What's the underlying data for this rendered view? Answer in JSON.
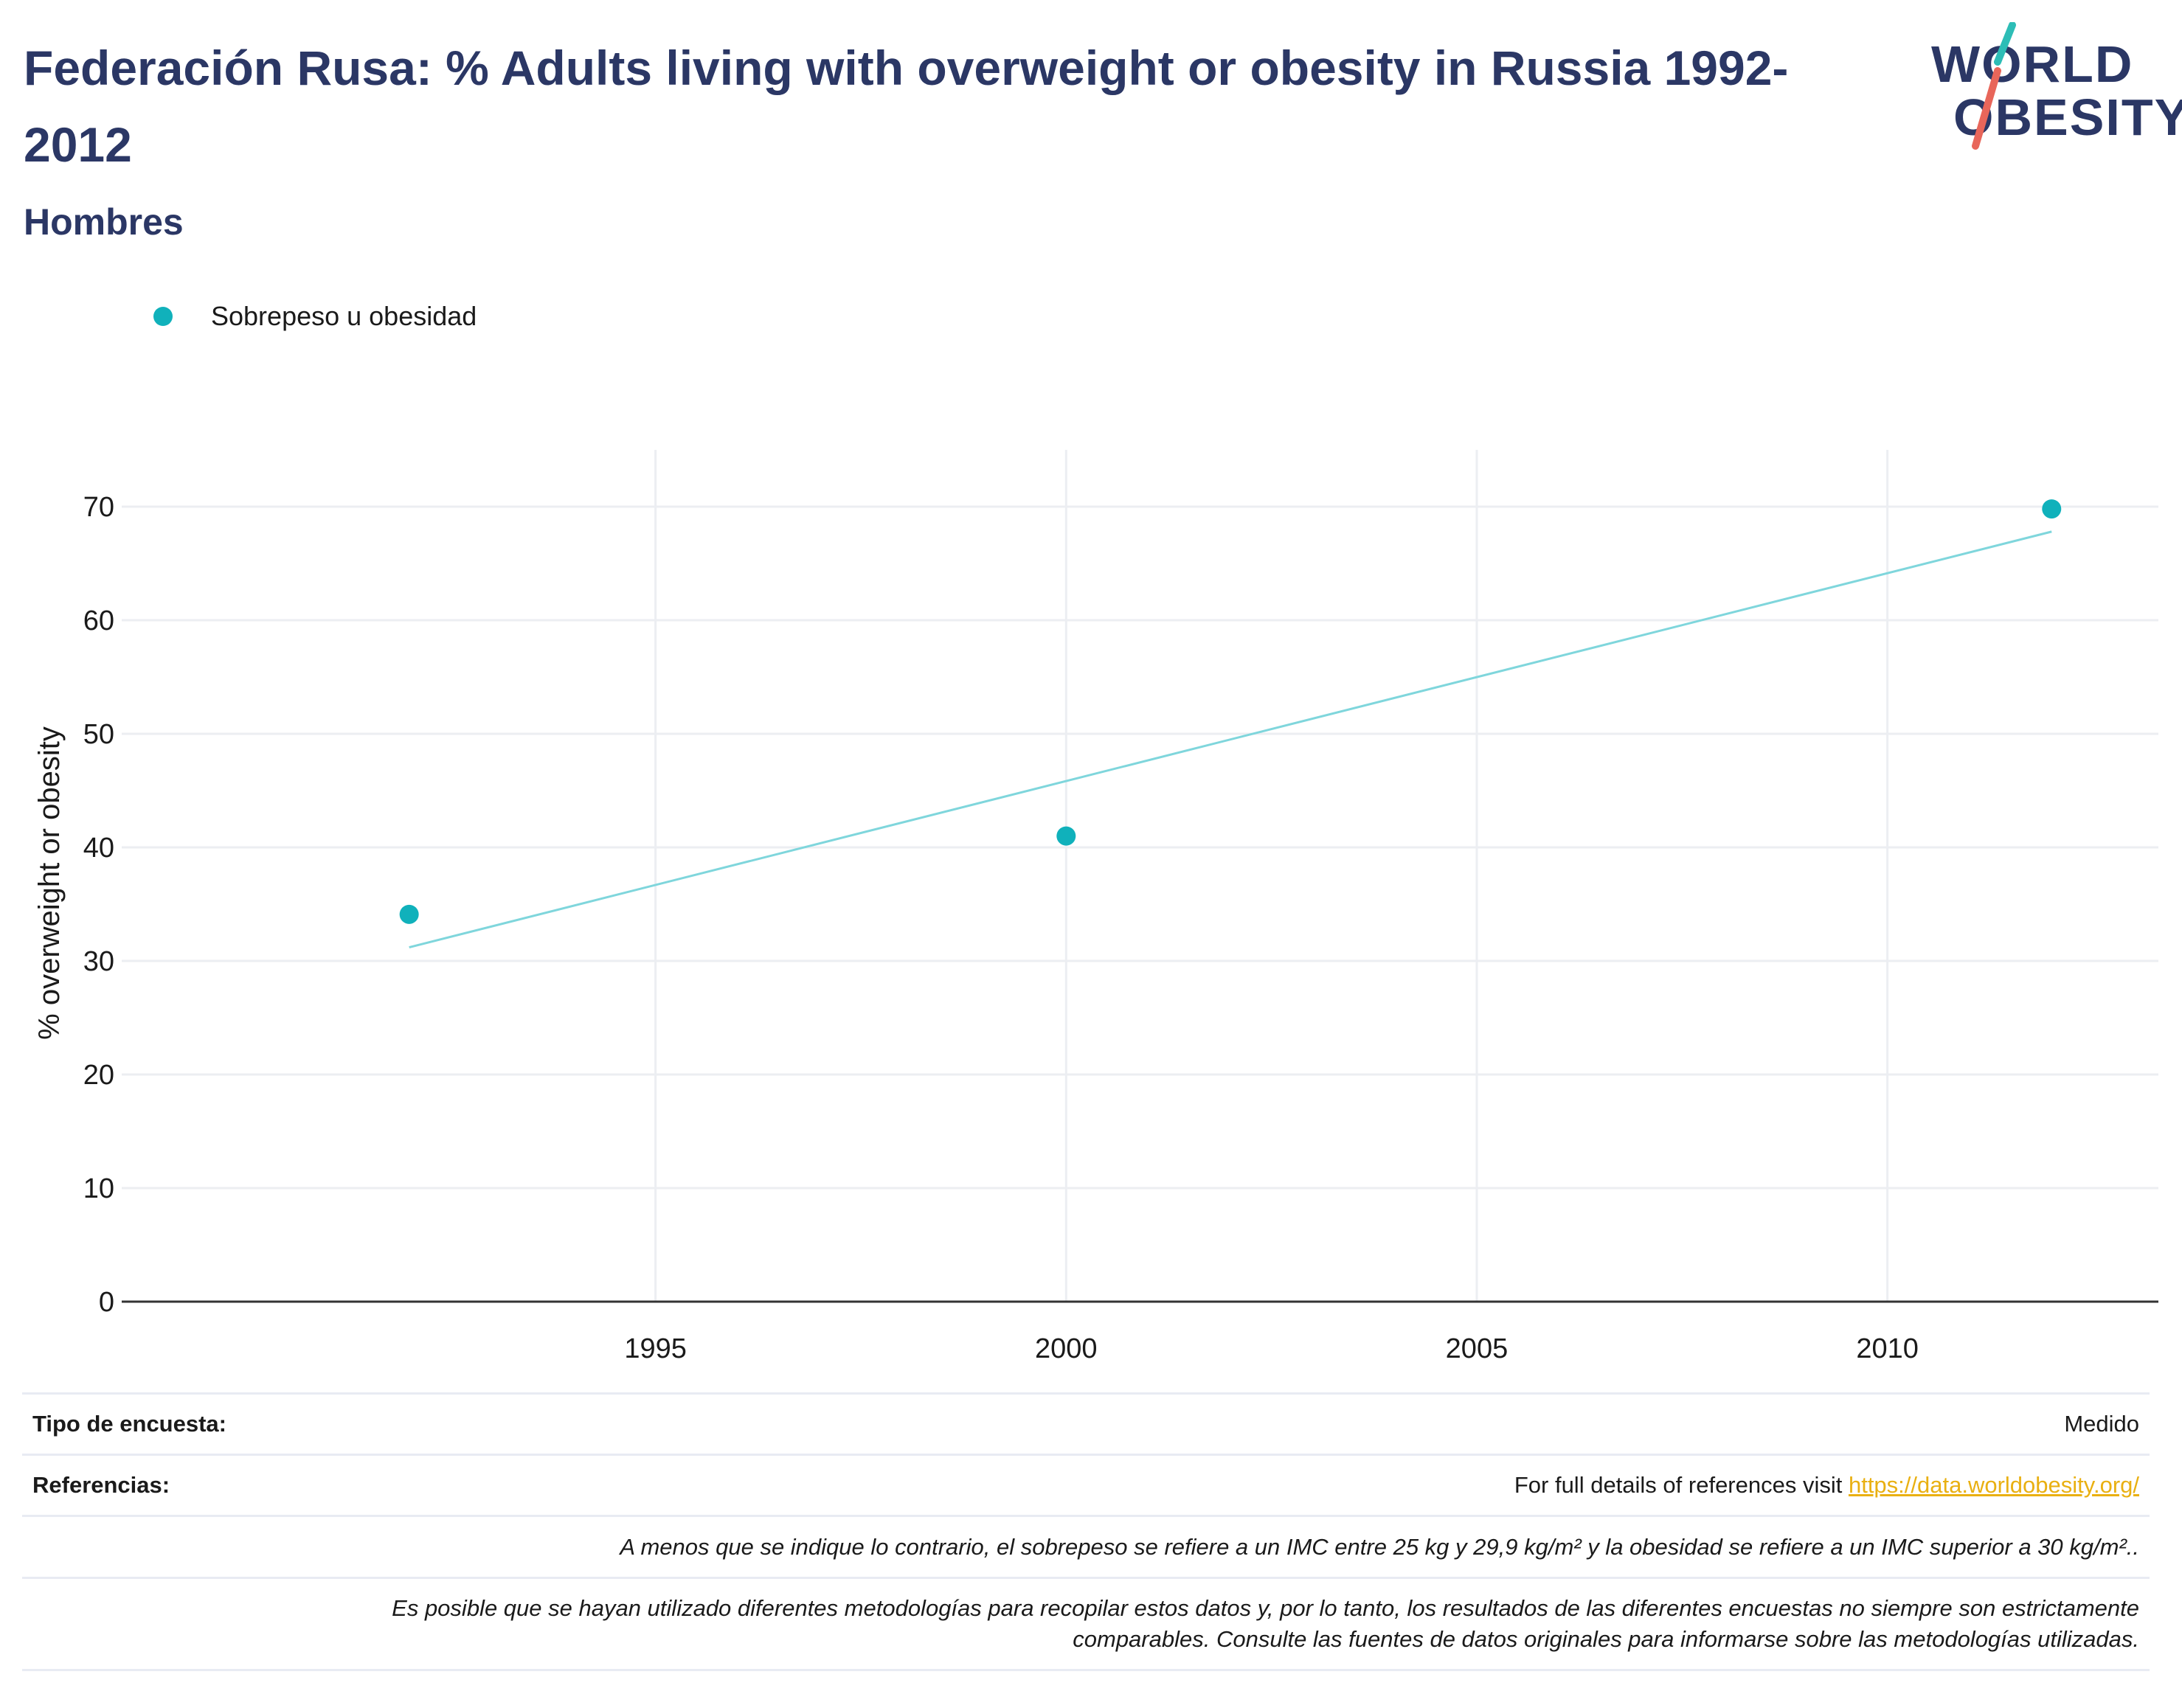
{
  "header": {
    "title": "Federación Rusa: % Adults living with overweight or obesity in Russia 1992-2012",
    "subtitle": "Hombres"
  },
  "logo": {
    "line1": "WORLD",
    "line2": "OBESITY"
  },
  "colors": {
    "accent": "#10b1bb",
    "trend": "#7fd6dc",
    "title": "#2b3765",
    "link": "#e9b012",
    "logo_slash_top": "#2dbdb6",
    "logo_slash_bottom": "#e8665a"
  },
  "chart_data": {
    "type": "scatter",
    "series": [
      {
        "name": "Sobrepeso u obesidad",
        "x": [
          1992,
          2000,
          2012
        ],
        "y": [
          34.1,
          41.0,
          69.8
        ]
      }
    ],
    "trendline": {
      "x": [
        1992,
        2012
      ],
      "y": [
        31.2,
        67.8
      ]
    },
    "xlabel": "",
    "ylabel": "% overweight or obesity",
    "xlim": [
      1988.5,
      2013.3
    ],
    "ylim": [
      0,
      75
    ],
    "x_ticks": [
      1995,
      2000,
      2005,
      2010
    ],
    "y_ticks": [
      0,
      10,
      20,
      30,
      40,
      50,
      60,
      70
    ],
    "grid": true,
    "legend": "top-left"
  },
  "footer": {
    "survey_label": "Tipo de encuesta:",
    "survey_value": "Medido",
    "refs_label": "Referencias:",
    "refs_text": "For full details of references visit ",
    "refs_link": "https://data.worldobesity.org/",
    "note1": "A menos que se indique lo contrario, el sobrepeso se refiere a un IMC entre 25 kg y 29,9 kg/m² y la obesidad se refiere a un IMC superior a 30 kg/m²..",
    "note2_line1": "Es posible que se hayan utilizado diferentes metodologías para recopilar estos datos y, por lo tanto, los resultados de las diferentes encuestas no siempre son estrictamente",
    "note2_line2": "comparables. Consulte las fuentes de datos originales para informarse sobre las metodologías utilizadas."
  }
}
